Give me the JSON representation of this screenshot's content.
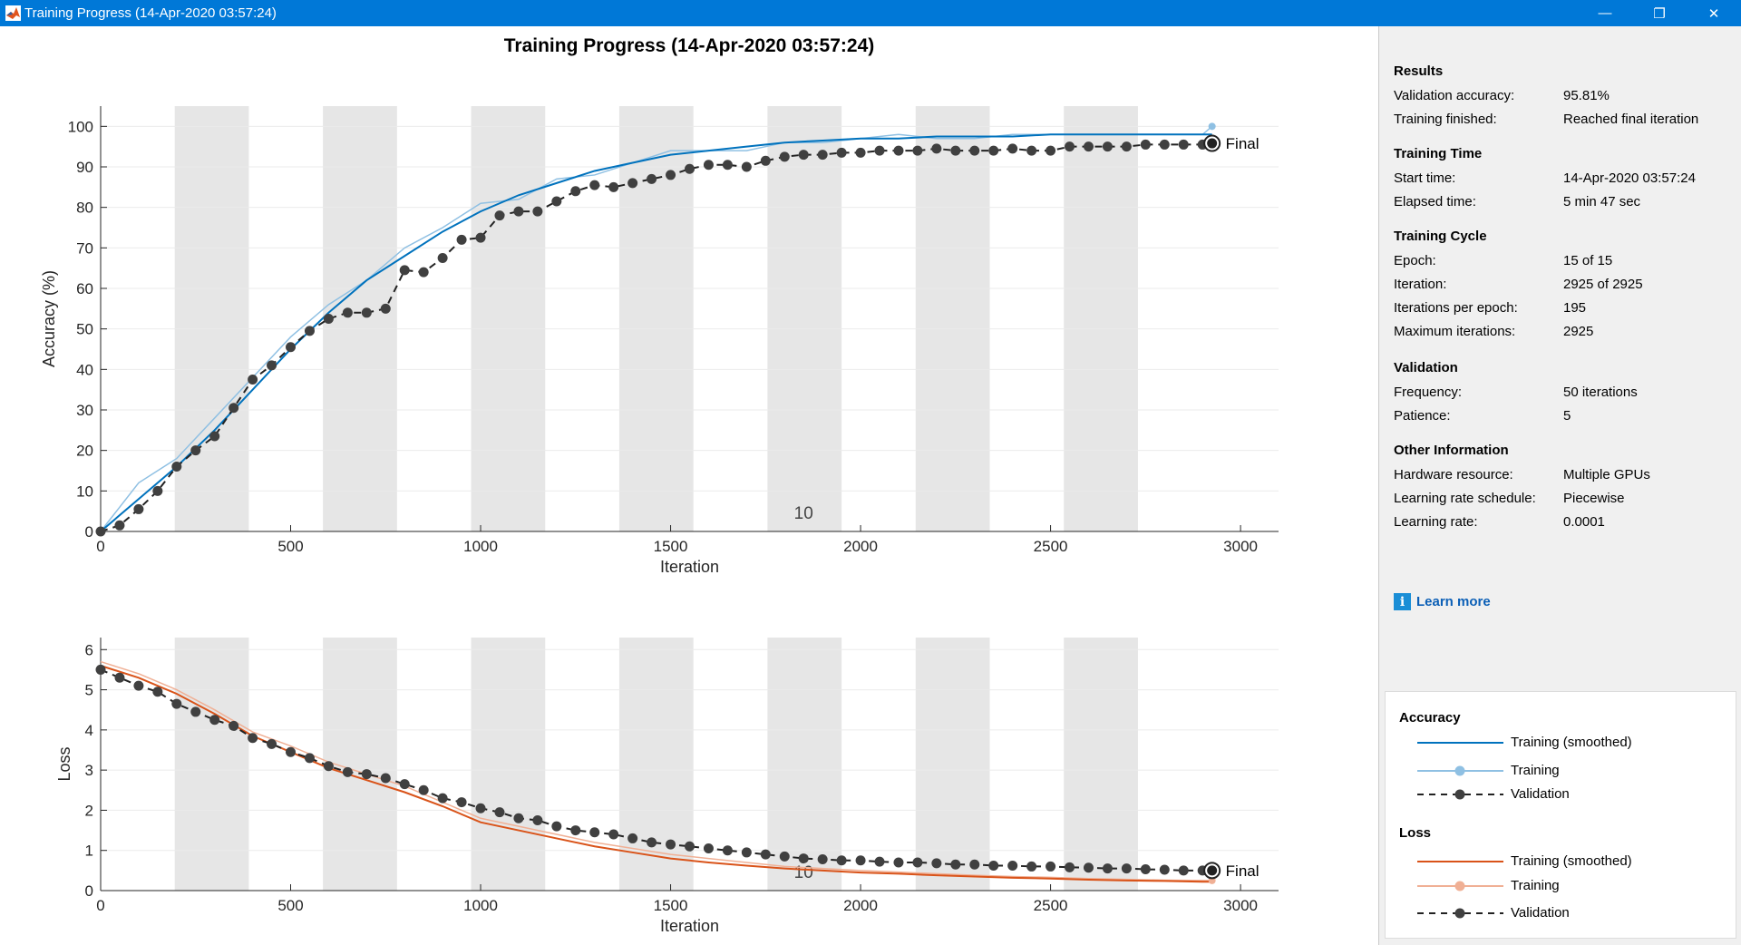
{
  "window": {
    "title": "Training Progress (14-Apr-2020 03:57:24)",
    "minimize_label": "—",
    "restore_label": "❐",
    "close_label": "✕"
  },
  "figure_title": "Training Progress (14-Apr-2020 03:57:24)",
  "info": {
    "results": {
      "title": "Results",
      "rows": [
        {
          "label": "Validation accuracy:",
          "value": "95.81%"
        },
        {
          "label": "Training finished:",
          "value": "Reached final iteration"
        }
      ]
    },
    "training_time": {
      "title": "Training Time",
      "rows": [
        {
          "label": "Start time:",
          "value": "14-Apr-2020 03:57:24"
        },
        {
          "label": "Elapsed time:",
          "value": "5 min 47 sec"
        }
      ]
    },
    "training_cycle": {
      "title": "Training Cycle",
      "rows": [
        {
          "label": "Epoch:",
          "value": "15 of 15"
        },
        {
          "label": "Iteration:",
          "value": "2925 of 2925"
        },
        {
          "label": "Iterations per epoch:",
          "value": "195"
        },
        {
          "label": "Maximum iterations:",
          "value": "2925"
        }
      ]
    },
    "validation": {
      "title": "Validation",
      "rows": [
        {
          "label": "Frequency:",
          "value": "50 iterations"
        },
        {
          "label": "Patience:",
          "value": "5"
        }
      ]
    },
    "other": {
      "title": "Other Information",
      "rows": [
        {
          "label": "Hardware resource:",
          "value": "Multiple GPUs"
        },
        {
          "label": "Learning rate schedule:",
          "value": "Piecewise"
        },
        {
          "label": "Learning rate:",
          "value": "0.0001"
        }
      ]
    },
    "learn_more": "Learn more"
  },
  "legend": {
    "accuracy_title": "Accuracy",
    "loss_title": "Loss",
    "training_smoothed": "Training (smoothed)",
    "training": "Training",
    "validation": "Validation"
  },
  "colors": {
    "acc_smoothed": "#0072bd",
    "acc_raw": "#8fc0e3",
    "loss_smoothed": "#d95319",
    "loss_raw": "#f0b095",
    "validation": "#404040",
    "epoch_shade": "#e6e6e6"
  },
  "chart_data": [
    {
      "type": "line",
      "ylabel": "Accuracy (%)",
      "xlabel": "Iteration",
      "xlim": [
        0,
        3100
      ],
      "ylim": [
        0,
        105
      ],
      "xticks": [
        0,
        500,
        1000,
        1500,
        2000,
        2500,
        3000
      ],
      "yticks": [
        0,
        10,
        20,
        30,
        40,
        50,
        60,
        70,
        80,
        90,
        100
      ],
      "epoch_label": "10",
      "final_label": "Final",
      "epoch_boundaries": [
        195,
        390,
        585,
        780,
        975,
        1170,
        1365,
        1560,
        1755,
        1950,
        2145,
        2340,
        2535,
        2730,
        2925
      ],
      "series": [
        {
          "name": "Training (smoothed)",
          "x": [
            0,
            100,
            200,
            300,
            400,
            500,
            600,
            700,
            800,
            900,
            1000,
            1100,
            1200,
            1300,
            1400,
            1500,
            1600,
            1700,
            1800,
            1900,
            2000,
            2100,
            2200,
            2300,
            2400,
            2500,
            2600,
            2700,
            2800,
            2900,
            2925
          ],
          "y": [
            0,
            8,
            16,
            25,
            35,
            45,
            54,
            62,
            68,
            74,
            79,
            83,
            86,
            89,
            91,
            93,
            94,
            95,
            96,
            96.5,
            97,
            97,
            97.5,
            97.5,
            97.5,
            98,
            98,
            98,
            98,
            98,
            98
          ]
        },
        {
          "name": "Training",
          "x": [
            0,
            100,
            200,
            300,
            400,
            500,
            600,
            700,
            800,
            900,
            1000,
            1100,
            1200,
            1300,
            1400,
            1500,
            1600,
            1700,
            1800,
            1900,
            2000,
            2100,
            2200,
            2300,
            2400,
            2500,
            2600,
            2700,
            2800,
            2900,
            2925
          ],
          "y": [
            0,
            12,
            18,
            28,
            38,
            48,
            56,
            62,
            70,
            75,
            81,
            82,
            87,
            88,
            91,
            94,
            94,
            94,
            96,
            96,
            97,
            98,
            97,
            97,
            98,
            98,
            98,
            98,
            98,
            98,
            100
          ]
        },
        {
          "name": "Validation",
          "x": [
            0,
            50,
            100,
            150,
            200,
            250,
            300,
            350,
            400,
            450,
            500,
            550,
            600,
            650,
            700,
            750,
            800,
            850,
            900,
            950,
            1000,
            1050,
            1100,
            1150,
            1200,
            1250,
            1300,
            1350,
            1400,
            1450,
            1500,
            1550,
            1600,
            1650,
            1700,
            1750,
            1800,
            1850,
            1900,
            1950,
            2000,
            2050,
            2100,
            2150,
            2200,
            2250,
            2300,
            2350,
            2400,
            2450,
            2500,
            2550,
            2600,
            2650,
            2700,
            2750,
            2800,
            2850,
            2900,
            2925
          ],
          "y": [
            0,
            1.5,
            5.5,
            10,
            16,
            20,
            23.5,
            30.5,
            37.5,
            41,
            45.5,
            49.5,
            52.5,
            54,
            54,
            55,
            64.5,
            64,
            67.5,
            72,
            72.5,
            78,
            79,
            79,
            81.5,
            84,
            85.5,
            85,
            86,
            87,
            88,
            89.5,
            90.5,
            90.5,
            90,
            91.5,
            92.5,
            93,
            93,
            93.5,
            93.5,
            94,
            94,
            94,
            94.5,
            94,
            94,
            94,
            94.5,
            94,
            94,
            95,
            95,
            95,
            95,
            95.5,
            95.5,
            95.5,
            95.5,
            95.81
          ]
        }
      ]
    },
    {
      "type": "line",
      "ylabel": "Loss",
      "xlabel": "Iteration",
      "xlim": [
        0,
        3100
      ],
      "ylim": [
        0,
        6.3
      ],
      "xticks": [
        0,
        500,
        1000,
        1500,
        2000,
        2500,
        3000
      ],
      "yticks": [
        0,
        1,
        2,
        3,
        4,
        5,
        6
      ],
      "epoch_label": "10",
      "final_label": "Final",
      "epoch_boundaries": [
        195,
        390,
        585,
        780,
        975,
        1170,
        1365,
        1560,
        1755,
        1950,
        2145,
        2340,
        2535,
        2730,
        2925
      ],
      "series": [
        {
          "name": "Training (smoothed)",
          "x": [
            0,
            100,
            200,
            300,
            400,
            500,
            600,
            700,
            800,
            900,
            1000,
            1100,
            1200,
            1300,
            1400,
            1500,
            1600,
            1700,
            1800,
            1900,
            2000,
            2100,
            2200,
            2300,
            2400,
            2500,
            2600,
            2700,
            2800,
            2900,
            2925
          ],
          "y": [
            5.6,
            5.3,
            4.9,
            4.4,
            3.85,
            3.45,
            3.05,
            2.75,
            2.45,
            2.1,
            1.7,
            1.5,
            1.3,
            1.1,
            0.95,
            0.8,
            0.7,
            0.62,
            0.55,
            0.5,
            0.45,
            0.42,
            0.38,
            0.35,
            0.32,
            0.3,
            0.27,
            0.25,
            0.24,
            0.22,
            0.22
          ]
        },
        {
          "name": "Training",
          "x": [
            0,
            100,
            200,
            300,
            400,
            500,
            600,
            700,
            800,
            900,
            1000,
            1100,
            1200,
            1300,
            1400,
            1500,
            1600,
            1700,
            1800,
            1900,
            2000,
            2100,
            2200,
            2300,
            2400,
            2500,
            2600,
            2700,
            2800,
            2900,
            2925
          ],
          "y": [
            5.7,
            5.4,
            5.0,
            4.5,
            3.95,
            3.6,
            3.2,
            2.9,
            2.6,
            2.2,
            1.8,
            1.6,
            1.4,
            1.2,
            1.05,
            0.9,
            0.8,
            0.7,
            0.6,
            0.55,
            0.5,
            0.46,
            0.42,
            0.38,
            0.35,
            0.33,
            0.3,
            0.28,
            0.26,
            0.25,
            0.25
          ]
        },
        {
          "name": "Validation",
          "x": [
            0,
            50,
            100,
            150,
            200,
            250,
            300,
            350,
            400,
            450,
            500,
            550,
            600,
            650,
            700,
            750,
            800,
            850,
            900,
            950,
            1000,
            1050,
            1100,
            1150,
            1200,
            1250,
            1300,
            1350,
            1400,
            1450,
            1500,
            1550,
            1600,
            1650,
            1700,
            1750,
            1800,
            1850,
            1900,
            1950,
            2000,
            2050,
            2100,
            2150,
            2200,
            2250,
            2300,
            2350,
            2400,
            2450,
            2500,
            2550,
            2600,
            2650,
            2700,
            2750,
            2800,
            2850,
            2900,
            2925
          ],
          "y": [
            5.5,
            5.3,
            5.1,
            4.95,
            4.65,
            4.45,
            4.25,
            4.1,
            3.8,
            3.65,
            3.45,
            3.3,
            3.1,
            2.95,
            2.9,
            2.8,
            2.65,
            2.5,
            2.3,
            2.2,
            2.05,
            1.95,
            1.8,
            1.75,
            1.6,
            1.5,
            1.45,
            1.4,
            1.3,
            1.2,
            1.15,
            1.1,
            1.05,
            1.0,
            0.95,
            0.9,
            0.85,
            0.8,
            0.78,
            0.75,
            0.75,
            0.72,
            0.7,
            0.7,
            0.68,
            0.65,
            0.65,
            0.62,
            0.62,
            0.6,
            0.6,
            0.58,
            0.57,
            0.55,
            0.55,
            0.53,
            0.52,
            0.5,
            0.5,
            0.5
          ]
        }
      ]
    }
  ]
}
